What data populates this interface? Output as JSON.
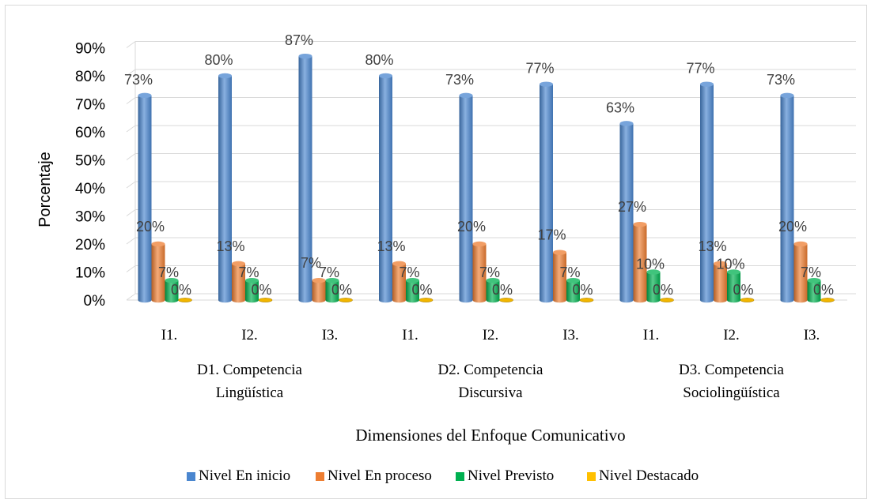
{
  "chart_data": {
    "type": "bar",
    "ylabel": "Porcentaje",
    "xlabel": "Dimensiones del Enfoque Comunicativo",
    "ylim": [
      0,
      90
    ],
    "yticks": [
      "0%",
      "10%",
      "20%",
      "30%",
      "40%",
      "50%",
      "60%",
      "70%",
      "80%",
      "90%"
    ],
    "grid": true,
    "legend_position": "bottom",
    "categories": [
      "I1.",
      "I2.",
      "I3.",
      "I1.",
      "I2.",
      "I3.",
      "I1.",
      "I2.",
      "I3."
    ],
    "groups": [
      {
        "label_lines": [
          "D1. Competencia",
          "Lingüística"
        ]
      },
      {
        "label_lines": [
          "D2. Competencia",
          "Discursiva"
        ]
      },
      {
        "label_lines": [
          "D3. Competencia",
          "Sociolingüística"
        ]
      }
    ],
    "series": [
      {
        "name": "Nivel En inicio",
        "color": "#4a86cf",
        "values": [
          73,
          80,
          87,
          80,
          73,
          77,
          63,
          77,
          73
        ],
        "labels": [
          "73%",
          "80%",
          "87%",
          "80%",
          "73%",
          "77%",
          "63%",
          "77%",
          "73%"
        ]
      },
      {
        "name": "Nivel En proceso",
        "color": "#ed7d31",
        "values": [
          20,
          13,
          7,
          13,
          20,
          17,
          27,
          13,
          20
        ],
        "labels": [
          "20%",
          "13%",
          "7%",
          "13%",
          "20%",
          "17%",
          "27%",
          "13%",
          "20%"
        ]
      },
      {
        "name": "Nivel Previsto",
        "color": "#00b050",
        "values": [
          7,
          7,
          7,
          7,
          7,
          7,
          10,
          10,
          7
        ],
        "labels": [
          "7%",
          "7%",
          "7%",
          "7%",
          "7%",
          "7%",
          "10%",
          "10%",
          "7%"
        ]
      },
      {
        "name": "Nivel Destacado",
        "color": "#ffc000",
        "values": [
          0,
          0,
          0,
          0,
          0,
          0,
          0,
          0,
          0
        ],
        "labels": [
          "0%",
          "0%",
          "0%",
          "0%",
          "0%",
          "0%",
          "0%",
          "0%",
          "0%"
        ]
      }
    ]
  }
}
